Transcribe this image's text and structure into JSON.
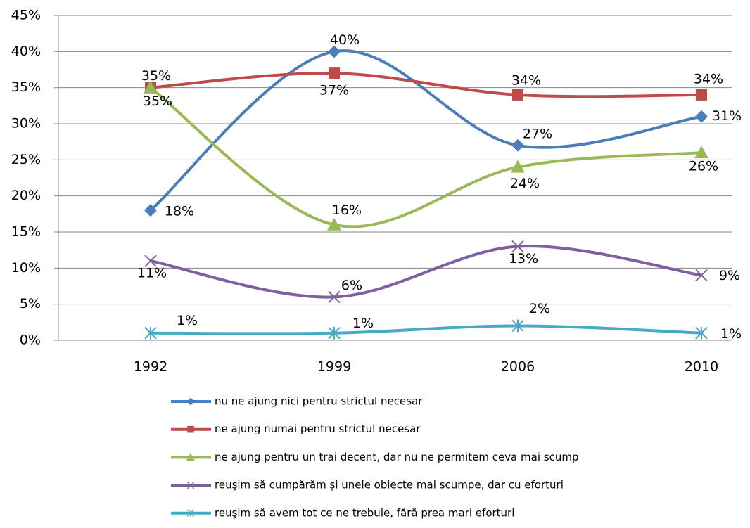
{
  "chart_data": {
    "type": "line",
    "categories": [
      "1992",
      "1999",
      "2006",
      "2010"
    ],
    "ylim": [
      0,
      45
    ],
    "yticks": [
      {
        "value": 0,
        "label": "0%"
      },
      {
        "value": 5,
        "label": "5%"
      },
      {
        "value": 10,
        "label": "10%"
      },
      {
        "value": 15,
        "label": "15%"
      },
      {
        "value": 20,
        "label": "20%"
      },
      {
        "value": 25,
        "label": "25%"
      },
      {
        "value": 30,
        "label": "30%"
      },
      {
        "value": 35,
        "label": "35%"
      },
      {
        "value": 40,
        "label": "40%"
      },
      {
        "value": 45,
        "label": "45%"
      }
    ],
    "grid": true,
    "smooth": true,
    "legend": "bottom",
    "series": [
      {
        "name": "nu ne ajung nici pentru strictul necesar",
        "color": "#4a7ebb",
        "marker": "diamond",
        "values": [
          18,
          40,
          27,
          31
        ],
        "value_labels": [
          "18%",
          "40%",
          "27%",
          "31%"
        ]
      },
      {
        "name": "ne ajung numai pentru strictul necesar",
        "color": "#be4b48",
        "marker": "square",
        "values": [
          35,
          37,
          34,
          34
        ],
        "value_labels": [
          "35%",
          "37%",
          "34%",
          "34%"
        ]
      },
      {
        "name": "ne ajung pentru un trai decent, dar nu ne permitem ceva mai scump",
        "color": "#98b954",
        "marker": "triangle",
        "values": [
          35,
          16,
          24,
          26
        ],
        "value_labels": [
          "35%",
          "16%",
          "24%",
          "26%"
        ]
      },
      {
        "name": "reuşim să cumpărăm şi unele obiecte mai scumpe, dar cu eforturi",
        "color": "#7d60a0",
        "marker": "x",
        "values": [
          11,
          6,
          13,
          9
        ],
        "value_labels": [
          "11%",
          "6%",
          "13%",
          "9%"
        ]
      },
      {
        "name": "reuşim să avem tot ce ne trebuie, fără prea mari eforturi",
        "color": "#46aac5",
        "marker": "asterisk",
        "values": [
          1,
          1,
          2,
          1
        ],
        "value_labels": [
          "1%",
          "1%",
          "2%",
          "1%"
        ]
      }
    ]
  }
}
